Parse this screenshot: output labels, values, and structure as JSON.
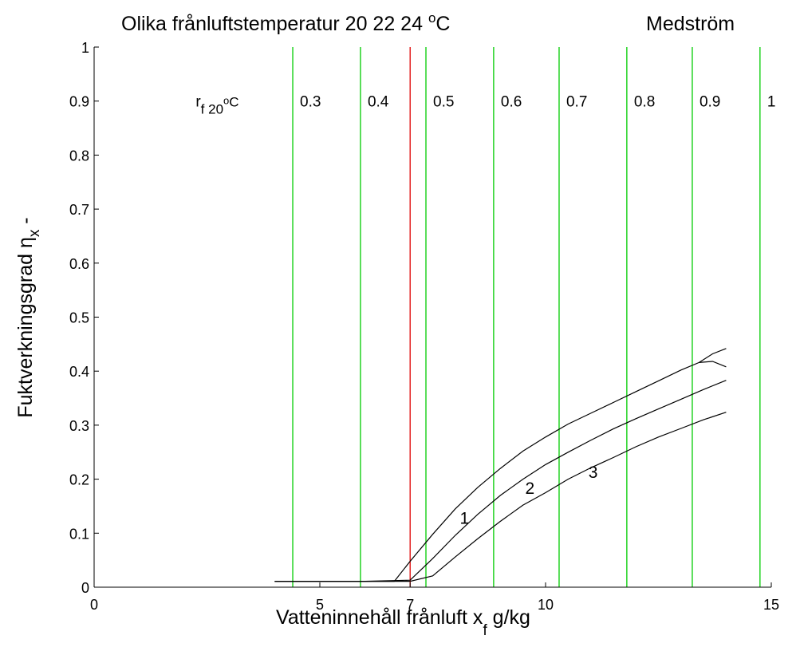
{
  "chart_data": {
    "type": "line",
    "title_left": "Olika frånluftstemperatur  20  22  24",
    "title_deg": "o",
    "title_unit": "C",
    "title_right": "Medström",
    "xlabel_main": "Vatteninnehåll frånluft  x",
    "xlabel_sub": "f",
    "xlabel_unit": "  g/kg",
    "ylabel_main": "Fuktverkningsgrad η",
    "ylabel_sub": "x",
    "ylabel_unit": "  -",
    "xlim": [
      0,
      15
    ],
    "ylim": [
      0,
      1
    ],
    "x_ticks": [
      0,
      5,
      7,
      10,
      15
    ],
    "y_ticks": [
      0,
      0.1,
      0.2,
      0.3,
      0.4,
      0.5,
      0.6,
      0.7,
      0.8,
      0.9,
      1
    ],
    "rh_header": {
      "main": "r",
      "sub": "f 20",
      "deg": "o",
      "unit": "C",
      "x": 2.25,
      "y": 0.9
    },
    "colors": {
      "rh_line": "#00cc00",
      "ref_line": "#e00000",
      "curve": "#000000",
      "axis": "#000000"
    },
    "rh_lines": [
      {
        "x": 4.4,
        "label": "0.3"
      },
      {
        "x": 5.9,
        "label": "0.4"
      },
      {
        "x": 7.35,
        "label": "0.5"
      },
      {
        "x": 8.85,
        "label": "0.6"
      },
      {
        "x": 10.3,
        "label": "0.7"
      },
      {
        "x": 11.8,
        "label": "0.8"
      },
      {
        "x": 13.25,
        "label": "0.9"
      },
      {
        "x": 14.75,
        "label": "1"
      }
    ],
    "reference_line": {
      "x": 7.0
    },
    "series": [
      {
        "name": "1",
        "x": [
          4.0,
          5.0,
          6.0,
          6.65,
          7.0,
          7.5,
          8.0,
          8.5,
          9.0,
          9.5,
          10.0,
          10.5,
          11.0,
          11.5,
          12.0,
          12.5,
          13.0,
          13.4,
          13.7,
          14.0
        ],
        "y": [
          0.011,
          0.011,
          0.011,
          0.011,
          0.048,
          0.098,
          0.145,
          0.185,
          0.22,
          0.252,
          0.278,
          0.302,
          0.322,
          0.342,
          0.362,
          0.382,
          0.402,
          0.416,
          0.432,
          0.442
        ]
      },
      {
        "name": "",
        "x": [
          13.4,
          13.7,
          14.0
        ],
        "y": [
          0.416,
          0.418,
          0.408
        ]
      },
      {
        "name": "2",
        "x": [
          4.0,
          5.0,
          6.0,
          7.0,
          7.5,
          8.0,
          8.5,
          9.0,
          9.5,
          10.0,
          10.5,
          11.0,
          11.5,
          12.0,
          12.5,
          13.0,
          13.5,
          14.0
        ],
        "y": [
          0.011,
          0.011,
          0.011,
          0.013,
          0.053,
          0.096,
          0.135,
          0.17,
          0.2,
          0.227,
          0.25,
          0.272,
          0.293,
          0.312,
          0.33,
          0.348,
          0.366,
          0.383
        ]
      },
      {
        "name": "3",
        "x": [
          4.0,
          5.0,
          6.0,
          7.0,
          7.5,
          8.0,
          8.5,
          9.0,
          9.5,
          10.0,
          10.5,
          11.0,
          11.5,
          12.0,
          12.5,
          13.0,
          13.5,
          14.0
        ],
        "y": [
          0.011,
          0.011,
          0.011,
          0.011,
          0.021,
          0.056,
          0.09,
          0.122,
          0.152,
          0.175,
          0.2,
          0.221,
          0.24,
          0.26,
          0.278,
          0.294,
          0.31,
          0.324
        ]
      }
    ],
    "curve_labels": [
      {
        "text": "1",
        "x": 8.1,
        "y": 0.128
      },
      {
        "text": "2",
        "x": 9.55,
        "y": 0.183
      },
      {
        "text": "3",
        "x": 10.95,
        "y": 0.213
      }
    ]
  }
}
